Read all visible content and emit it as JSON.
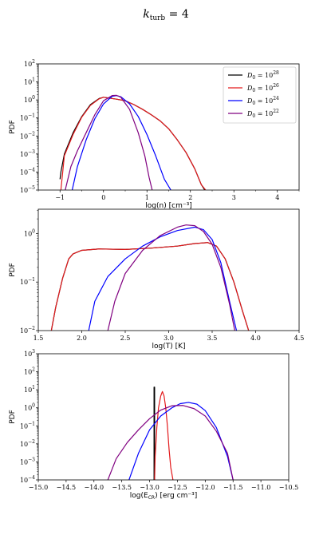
{
  "figure": {
    "title_main": "k",
    "title_sub": "turb",
    "title_tail": " = 4"
  },
  "legend": [
    {
      "base": "D",
      "sub": "0",
      "eq": " = 10",
      "exp": "28",
      "color": "#000000"
    },
    {
      "base": "D",
      "sub": "0",
      "eq": " = 10",
      "exp": "26",
      "color": "#e31a1c"
    },
    {
      "base": "D",
      "sub": "0",
      "eq": " = 10",
      "exp": "24",
      "color": "#0000ff"
    },
    {
      "base": "D",
      "sub": "0",
      "eq": " = 10",
      "exp": "22",
      "color": "#800080"
    }
  ],
  "chart_data": [
    {
      "type": "line",
      "xlabel": "log(n) [cm⁻³]",
      "ylabel": "PDF",
      "xlim": [
        -1.5,
        4.5
      ],
      "ylim_exp": [
        -5,
        2
      ],
      "yscale": "log",
      "xticks": [
        -1,
        0,
        1,
        2,
        3,
        4
      ],
      "xtick_labels": [
        "−1",
        "0",
        "1",
        "2",
        "3",
        "4"
      ],
      "yticks": [
        -5,
        -4,
        -3,
        -2,
        -1,
        0,
        1,
        2
      ],
      "legend_position": "top-right",
      "series": [
        {
          "color": "#000000",
          "x": [
            -1.0,
            -0.98,
            -0.9,
            -0.7,
            -0.5,
            -0.3,
            -0.1,
            0.0,
            0.1,
            0.3,
            0.5,
            0.7,
            0.9,
            1.1,
            1.3,
            1.5,
            1.7,
            1.9,
            2.1,
            2.25,
            2.33
          ],
          "y": [
            4e-05,
            0.0001,
            0.001,
            0.015,
            0.12,
            0.55,
            1.2,
            1.4,
            1.3,
            1.1,
            0.9,
            0.55,
            0.3,
            0.15,
            0.07,
            0.025,
            0.006,
            0.0012,
            0.00015,
            2e-05,
            1e-05
          ]
        },
        {
          "color": "#e31a1c",
          "x": [
            -0.98,
            -0.9,
            -0.7,
            -0.5,
            -0.3,
            -0.1,
            0.0,
            0.1,
            0.3,
            0.5,
            0.7,
            0.9,
            1.1,
            1.3,
            1.5,
            1.7,
            1.9,
            2.1,
            2.25,
            2.35
          ],
          "y": [
            1e-05,
            0.0008,
            0.012,
            0.11,
            0.5,
            1.15,
            1.4,
            1.3,
            1.1,
            0.9,
            0.55,
            0.3,
            0.15,
            0.07,
            0.025,
            0.006,
            0.0012,
            0.00015,
            2e-05,
            1e-05
          ]
        },
        {
          "color": "#0000ff",
          "x": [
            -0.72,
            -0.6,
            -0.4,
            -0.2,
            0.0,
            0.2,
            0.3,
            0.4,
            0.6,
            0.8,
            1.0,
            1.2,
            1.4,
            1.55
          ],
          "y": [
            1e-05,
            0.0002,
            0.006,
            0.09,
            0.6,
            1.6,
            1.75,
            1.5,
            0.6,
            0.12,
            0.012,
            0.0008,
            4e-05,
            1e-05
          ]
        },
        {
          "color": "#800080",
          "x": [
            -0.88,
            -0.75,
            -0.6,
            -0.4,
            -0.2,
            0.0,
            0.2,
            0.3,
            0.4,
            0.6,
            0.8,
            0.95,
            1.05,
            1.12
          ],
          "y": [
            1e-05,
            0.0002,
            0.0015,
            0.015,
            0.15,
            0.9,
            1.75,
            1.8,
            1.4,
            0.3,
            0.015,
            0.0008,
            5e-05,
            1e-05
          ]
        }
      ]
    },
    {
      "type": "line",
      "xlabel": "log(T) [K]",
      "ylabel": "PDF",
      "xlim": [
        1.5,
        4.5
      ],
      "ylim_exp": [
        -2,
        0.5
      ],
      "yscale": "log",
      "xticks": [
        1.5,
        2.0,
        2.5,
        3.0,
        3.5,
        4.0,
        4.5
      ],
      "xtick_labels": [
        "1.5",
        "2.0",
        "2.5",
        "3.0",
        "3.5",
        "4.0",
        "4.5"
      ],
      "yticks": [
        -2,
        -1,
        0
      ],
      "series": [
        {
          "color": "#000000",
          "x": [
            1.65,
            1.7,
            1.78,
            1.85,
            1.9,
            2.0,
            2.2,
            2.5,
            2.8,
            3.1,
            3.3,
            3.45,
            3.55,
            3.65,
            3.75,
            3.85,
            3.92
          ],
          "y": [
            0.01,
            0.03,
            0.12,
            0.3,
            0.38,
            0.45,
            0.48,
            0.47,
            0.5,
            0.55,
            0.62,
            0.65,
            0.55,
            0.3,
            0.1,
            0.025,
            0.01
          ]
        },
        {
          "color": "#e31a1c",
          "x": [
            1.65,
            1.7,
            1.78,
            1.85,
            1.9,
            2.0,
            2.2,
            2.5,
            2.8,
            3.1,
            3.3,
            3.45,
            3.55,
            3.65,
            3.75,
            3.85,
            3.92
          ],
          "y": [
            0.01,
            0.03,
            0.12,
            0.3,
            0.38,
            0.45,
            0.48,
            0.47,
            0.5,
            0.55,
            0.62,
            0.65,
            0.55,
            0.3,
            0.1,
            0.025,
            0.01
          ]
        },
        {
          "color": "#0000ff",
          "x": [
            2.08,
            2.15,
            2.3,
            2.5,
            2.7,
            2.9,
            3.1,
            3.3,
            3.4,
            3.5,
            3.6,
            3.7,
            3.78
          ],
          "y": [
            0.01,
            0.04,
            0.13,
            0.3,
            0.55,
            0.85,
            1.15,
            1.35,
            1.2,
            0.75,
            0.25,
            0.04,
            0.01
          ]
        },
        {
          "color": "#800080",
          "x": [
            2.3,
            2.38,
            2.5,
            2.7,
            2.9,
            3.1,
            3.2,
            3.3,
            3.4,
            3.5,
            3.6,
            3.7,
            3.76
          ],
          "y": [
            0.01,
            0.04,
            0.15,
            0.45,
            0.9,
            1.35,
            1.5,
            1.45,
            1.1,
            0.6,
            0.2,
            0.035,
            0.01
          ]
        }
      ]
    },
    {
      "type": "line",
      "xlabel": "log(E",
      "xlabel_sub": "CR",
      "xlabel_tail": ") [erg cm⁻³]",
      "ylabel": "PDF",
      "xlim": [
        -15.0,
        -10.5
      ],
      "ylim_exp": [
        -4,
        3
      ],
      "yscale": "log",
      "xticks": [
        -15.0,
        -14.5,
        -14.0,
        -13.5,
        -13.0,
        -12.5,
        -12.0,
        -11.5,
        -11.0,
        -10.5
      ],
      "xtick_labels": [
        "−15.0",
        "−14.5",
        "−14.0",
        "−13.5",
        "−13.0",
        "−12.5",
        "−12.0",
        "−11.5",
        "−11.0",
        "−10.5"
      ],
      "yticks": [
        -4,
        -3,
        -2,
        -1,
        0,
        1,
        2,
        3
      ],
      "series": [
        {
          "color": "#000000",
          "x": [
            -12.92,
            -12.92,
            -12.91,
            -12.91
          ],
          "y": [
            0.0001,
            14,
            14,
            0.0001
          ]
        },
        {
          "color": "#e31a1c",
          "x": [
            -12.91,
            -12.9,
            -12.87,
            -12.84,
            -12.8,
            -12.77,
            -12.74,
            -12.71,
            -12.68,
            -12.65,
            -12.62,
            -12.58
          ],
          "y": [
            0.0001,
            0.002,
            0.08,
            1.0,
            4.5,
            8.0,
            4.5,
            1.0,
            0.1,
            0.005,
            0.0005,
            0.0001
          ]
        },
        {
          "color": "#0000ff",
          "x": [
            -13.37,
            -13.2,
            -13.0,
            -12.8,
            -12.6,
            -12.45,
            -12.3,
            -12.15,
            -12.0,
            -11.8,
            -11.6,
            -11.5
          ],
          "y": [
            0.0001,
            0.003,
            0.06,
            0.35,
            1.0,
            1.7,
            2.0,
            1.6,
            0.7,
            0.08,
            0.002,
            0.0001
          ]
        },
        {
          "color": "#800080",
          "x": [
            -13.75,
            -13.6,
            -13.4,
            -13.2,
            -13.0,
            -12.8,
            -12.6,
            -12.4,
            -12.2,
            -12.0,
            -11.8,
            -11.6,
            -11.5
          ],
          "y": [
            0.0001,
            0.0015,
            0.012,
            0.06,
            0.25,
            0.75,
            1.3,
            1.35,
            0.9,
            0.35,
            0.05,
            0.003,
            0.0001
          ]
        }
      ]
    }
  ]
}
